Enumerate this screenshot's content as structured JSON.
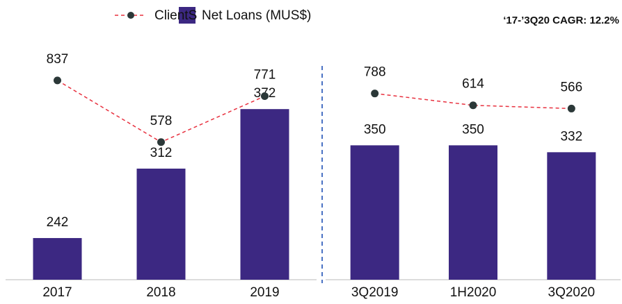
{
  "chart_data": [
    {
      "type": "bar",
      "annotation": "‘17-’3Q20  CAGR: 12.2%",
      "categories": [
        "2017",
        "2018",
        "2019"
      ],
      "ylim": [
        200,
        440
      ],
      "y2lim": [
        0,
        1000
      ],
      "series": [
        {
          "name": "Net Loans (MUS$)",
          "color": "#3c2882",
          "values": [
            242,
            312,
            372
          ]
        },
        {
          "name": "ClientS",
          "color": "#e8313f",
          "marker_color": "#2b3838",
          "type": "line",
          "axis": "y2",
          "values": [
            837,
            578,
            771
          ]
        }
      ]
    },
    {
      "type": "bar",
      "categories": [
        "3Q2019",
        "1H2020",
        "3Q2020"
      ],
      "ylim": [
        0,
        620
      ],
      "y2lim": [
        -1950,
        1550
      ],
      "series": [
        {
          "color": "#3c2882",
          "values": [
            350,
            350,
            332
          ]
        },
        {
          "color": "#e8313f",
          "marker_color": "#2b3838",
          "type": "line",
          "axis": "y2",
          "values": [
            788,
            614,
            566
          ]
        }
      ]
    }
  ]
}
